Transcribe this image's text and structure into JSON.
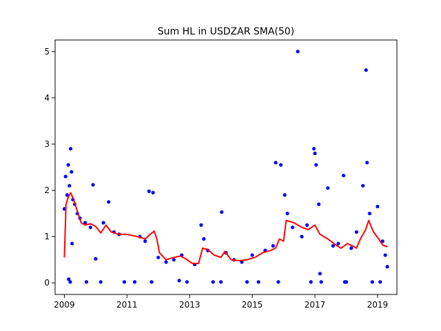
{
  "chart_data": {
    "type": "scatter",
    "title": "Sum HL in USDZAR SMA(50)",
    "xlabel": "",
    "ylabel": "",
    "xlim": [
      "2008-09-15",
      "2019-08-15"
    ],
    "ylim": [
      -0.25,
      5.25
    ],
    "x_ticks": [
      {
        "value": "2009-01-01",
        "label": "2009"
      },
      {
        "value": "2011-01-01",
        "label": "2011"
      },
      {
        "value": "2013-01-01",
        "label": "2013"
      },
      {
        "value": "2015-01-01",
        "label": "2015"
      },
      {
        "value": "2017-01-01",
        "label": "2017"
      },
      {
        "value": "2019-01-01",
        "label": "2019"
      }
    ],
    "y_ticks": [
      {
        "value": 0,
        "label": "0"
      },
      {
        "value": 1,
        "label": "1"
      },
      {
        "value": 2,
        "label": "2"
      },
      {
        "value": 3,
        "label": "3"
      },
      {
        "value": 4,
        "label": "4"
      },
      {
        "value": 5,
        "label": "5"
      }
    ],
    "grid": false,
    "legend": "none",
    "series": [
      {
        "kind": "points",
        "color": "#0000ff",
        "points": [
          {
            "x": "2009-01-01",
            "y": 1.6
          },
          {
            "x": "2009-01-15",
            "y": 2.3
          },
          {
            "x": "2009-02-01",
            "y": 1.9
          },
          {
            "x": "2009-02-15",
            "y": 2.55
          },
          {
            "x": "2009-03-01",
            "y": 2.1
          },
          {
            "x": "2009-03-15",
            "y": 2.9
          },
          {
            "x": "2009-03-25",
            "y": 2.4
          },
          {
            "x": "2009-04-10",
            "y": 1.8
          },
          {
            "x": "2009-05-01",
            "y": 1.7
          },
          {
            "x": "2009-06-01",
            "y": 1.5
          },
          {
            "x": "2009-07-01",
            "y": 1.4
          },
          {
            "x": "2009-02-20",
            "y": 0.08
          },
          {
            "x": "2009-03-10",
            "y": 0.02
          },
          {
            "x": "2009-04-01",
            "y": 0.85
          },
          {
            "x": "2009-09-01",
            "y": 1.3
          },
          {
            "x": "2009-11-01",
            "y": 1.2
          },
          {
            "x": "2009-12-01",
            "y": 2.12
          },
          {
            "x": "2010-01-01",
            "y": 0.52
          },
          {
            "x": "2009-09-15",
            "y": 0.02
          },
          {
            "x": "2010-03-01",
            "y": 0.02
          },
          {
            "x": "2010-04-01",
            "y": 1.3
          },
          {
            "x": "2010-06-01",
            "y": 1.75
          },
          {
            "x": "2010-08-01",
            "y": 1.1
          },
          {
            "x": "2010-10-01",
            "y": 1.05
          },
          {
            "x": "2010-12-01",
            "y": 0.02
          },
          {
            "x": "2011-04-01",
            "y": 0.02
          },
          {
            "x": "2011-06-01",
            "y": 1.0
          },
          {
            "x": "2011-08-01",
            "y": 0.9
          },
          {
            "x": "2011-09-15",
            "y": 1.98
          },
          {
            "x": "2011-11-01",
            "y": 1.95
          },
          {
            "x": "2011-10-15",
            "y": 0.02
          },
          {
            "x": "2012-01-01",
            "y": 0.55
          },
          {
            "x": "2012-04-01",
            "y": 0.45
          },
          {
            "x": "2012-07-01",
            "y": 0.5
          },
          {
            "x": "2012-09-01",
            "y": 0.05
          },
          {
            "x": "2012-10-01",
            "y": 0.6
          },
          {
            "x": "2012-12-01",
            "y": 0.02
          },
          {
            "x": "2013-03-01",
            "y": 0.4
          },
          {
            "x": "2013-05-15",
            "y": 1.25
          },
          {
            "x": "2013-06-15",
            "y": 0.95
          },
          {
            "x": "2013-08-01",
            "y": 0.7
          },
          {
            "x": "2013-10-01",
            "y": 0.02
          },
          {
            "x": "2014-01-01",
            "y": 0.02
          },
          {
            "x": "2014-01-10",
            "y": 1.53
          },
          {
            "x": "2014-03-01",
            "y": 0.65
          },
          {
            "x": "2014-06-01",
            "y": 0.5
          },
          {
            "x": "2014-09-01",
            "y": 0.45
          },
          {
            "x": "2014-11-01",
            "y": 0.02
          },
          {
            "x": "2015-01-01",
            "y": 0.6
          },
          {
            "x": "2015-03-15",
            "y": 0.02
          },
          {
            "x": "2015-06-01",
            "y": 0.7
          },
          {
            "x": "2015-09-01",
            "y": 0.8
          },
          {
            "x": "2015-10-01",
            "y": 2.6
          },
          {
            "x": "2015-11-01",
            "y": 0.02
          },
          {
            "x": "2015-12-01",
            "y": 2.55
          },
          {
            "x": "2016-01-15",
            "y": 1.9
          },
          {
            "x": "2016-02-15",
            "y": 1.5
          },
          {
            "x": "2016-04-15",
            "y": 1.2
          },
          {
            "x": "2016-06-15",
            "y": 5.0
          },
          {
            "x": "2016-08-01",
            "y": 1.0
          },
          {
            "x": "2016-10-01",
            "y": 1.25
          },
          {
            "x": "2016-11-15",
            "y": 0.02
          },
          {
            "x": "2016-12-20",
            "y": 2.9
          },
          {
            "x": "2017-01-01",
            "y": 2.8
          },
          {
            "x": "2017-01-15",
            "y": 2.55
          },
          {
            "x": "2017-02-15",
            "y": 1.7
          },
          {
            "x": "2017-03-01",
            "y": 0.2
          },
          {
            "x": "2017-03-15",
            "y": 0.02
          },
          {
            "x": "2017-06-01",
            "y": 2.05
          },
          {
            "x": "2017-08-01",
            "y": 0.8
          },
          {
            "x": "2017-10-01",
            "y": 0.85
          },
          {
            "x": "2017-12-15",
            "y": 0.02
          },
          {
            "x": "2018-01-01",
            "y": 0.02
          },
          {
            "x": "2017-12-01",
            "y": 2.32
          },
          {
            "x": "2018-03-01",
            "y": 0.75
          },
          {
            "x": "2018-05-01",
            "y": 1.1
          },
          {
            "x": "2018-07-15",
            "y": 2.1
          },
          {
            "x": "2018-08-20",
            "y": 4.6
          },
          {
            "x": "2018-09-01",
            "y": 2.6
          },
          {
            "x": "2018-10-01",
            "y": 1.5
          },
          {
            "x": "2018-11-01",
            "y": 0.02
          },
          {
            "x": "2019-01-01",
            "y": 1.65
          },
          {
            "x": "2019-02-01",
            "y": 0.02
          },
          {
            "x": "2019-03-01",
            "y": 0.9
          },
          {
            "x": "2019-04-01",
            "y": 0.6
          },
          {
            "x": "2019-04-25",
            "y": 0.35
          }
        ]
      },
      {
        "kind": "line",
        "color": "#ff0000",
        "points": [
          {
            "x": "2009-01-01",
            "y": 0.55
          },
          {
            "x": "2009-01-20",
            "y": 1.7
          },
          {
            "x": "2009-02-15",
            "y": 1.85
          },
          {
            "x": "2009-03-15",
            "y": 1.95
          },
          {
            "x": "2009-04-15",
            "y": 1.82
          },
          {
            "x": "2009-06-01",
            "y": 1.55
          },
          {
            "x": "2009-07-15",
            "y": 1.3
          },
          {
            "x": "2009-09-01",
            "y": 1.25
          },
          {
            "x": "2009-11-01",
            "y": 1.28
          },
          {
            "x": "2010-01-01",
            "y": 1.22
          },
          {
            "x": "2010-03-01",
            "y": 1.08
          },
          {
            "x": "2010-05-01",
            "y": 1.25
          },
          {
            "x": "2010-07-01",
            "y": 1.1
          },
          {
            "x": "2010-10-01",
            "y": 1.05
          },
          {
            "x": "2011-01-01",
            "y": 1.05
          },
          {
            "x": "2011-05-01",
            "y": 1.0
          },
          {
            "x": "2011-08-01",
            "y": 0.95
          },
          {
            "x": "2011-10-01",
            "y": 1.05
          },
          {
            "x": "2011-11-15",
            "y": 1.12
          },
          {
            "x": "2011-12-15",
            "y": 0.95
          },
          {
            "x": "2012-01-15",
            "y": 0.65
          },
          {
            "x": "2012-04-01",
            "y": 0.5
          },
          {
            "x": "2012-07-01",
            "y": 0.55
          },
          {
            "x": "2012-09-15",
            "y": 0.58
          },
          {
            "x": "2012-11-15",
            "y": 0.52
          },
          {
            "x": "2013-02-01",
            "y": 0.42
          },
          {
            "x": "2013-04-15",
            "y": 0.42
          },
          {
            "x": "2013-06-01",
            "y": 0.75
          },
          {
            "x": "2013-08-01",
            "y": 0.72
          },
          {
            "x": "2013-10-15",
            "y": 0.6
          },
          {
            "x": "2014-01-01",
            "y": 0.55
          },
          {
            "x": "2014-02-15",
            "y": 0.68
          },
          {
            "x": "2014-05-01",
            "y": 0.5
          },
          {
            "x": "2014-08-01",
            "y": 0.48
          },
          {
            "x": "2014-11-01",
            "y": 0.5
          },
          {
            "x": "2015-02-01",
            "y": 0.55
          },
          {
            "x": "2015-05-01",
            "y": 0.65
          },
          {
            "x": "2015-08-01",
            "y": 0.7
          },
          {
            "x": "2015-10-01",
            "y": 0.75
          },
          {
            "x": "2015-11-15",
            "y": 0.95
          },
          {
            "x": "2016-01-01",
            "y": 0.9
          },
          {
            "x": "2016-02-01",
            "y": 1.35
          },
          {
            "x": "2016-05-01",
            "y": 1.3
          },
          {
            "x": "2016-08-01",
            "y": 1.2
          },
          {
            "x": "2016-10-15",
            "y": 1.15
          },
          {
            "x": "2017-01-01",
            "y": 1.25
          },
          {
            "x": "2017-03-01",
            "y": 1.05
          },
          {
            "x": "2017-06-01",
            "y": 0.95
          },
          {
            "x": "2017-09-01",
            "y": 0.82
          },
          {
            "x": "2017-11-01",
            "y": 0.75
          },
          {
            "x": "2018-01-15",
            "y": 0.85
          },
          {
            "x": "2018-03-15",
            "y": 0.8
          },
          {
            "x": "2018-05-01",
            "y": 0.75
          },
          {
            "x": "2018-06-15",
            "y": 0.95
          },
          {
            "x": "2018-08-15",
            "y": 1.15
          },
          {
            "x": "2018-09-20",
            "y": 1.35
          },
          {
            "x": "2018-11-15",
            "y": 1.1
          },
          {
            "x": "2019-01-15",
            "y": 0.95
          },
          {
            "x": "2019-03-01",
            "y": 0.82
          },
          {
            "x": "2019-04-25",
            "y": 0.78
          }
        ]
      }
    ]
  }
}
